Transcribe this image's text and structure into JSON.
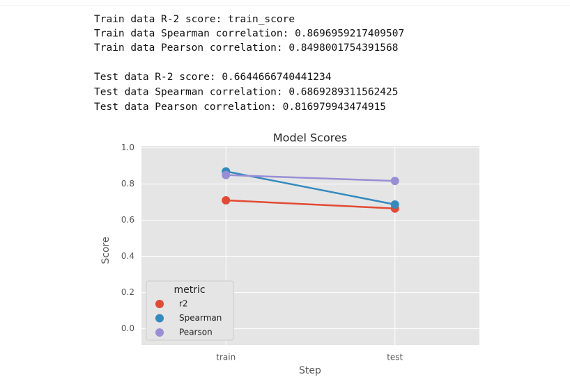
{
  "output": {
    "train_lines": [
      "Train data R-2 score: train_score",
      "Train data Spearman correlation: 0.8696959217409507",
      "Train data Pearson correlation: 0.8498001754391568"
    ],
    "test_lines": [
      "Test data R-2 score: 0.6644666740441234",
      "Test data Spearman correlation: 0.6869289311562425",
      "Test data Pearson correlation: 0.816979943474915"
    ]
  },
  "chart_data": {
    "type": "line",
    "title": "Model Scores",
    "x_label": "Step",
    "y_label": "Score",
    "categories": [
      "train",
      "test"
    ],
    "series": [
      {
        "name": "r2",
        "color": "#e24a33",
        "values": [
          0.71,
          0.665
        ]
      },
      {
        "name": "Spearman",
        "color": "#348abd",
        "values": [
          0.87,
          0.687
        ]
      },
      {
        "name": "Pearson",
        "color": "#988ed5",
        "values": [
          0.85,
          0.817
        ]
      }
    ],
    "ylim": [
      -0.09,
      1.01
    ],
    "yticks": [
      {
        "value": 0,
        "label": "0.0"
      },
      0.2,
      0.4,
      0.6,
      0.8,
      {
        "value": 1,
        "label": "1.0"
      }
    ],
    "grid": true,
    "legend_title": "metric",
    "legend_position": "lower left"
  }
}
